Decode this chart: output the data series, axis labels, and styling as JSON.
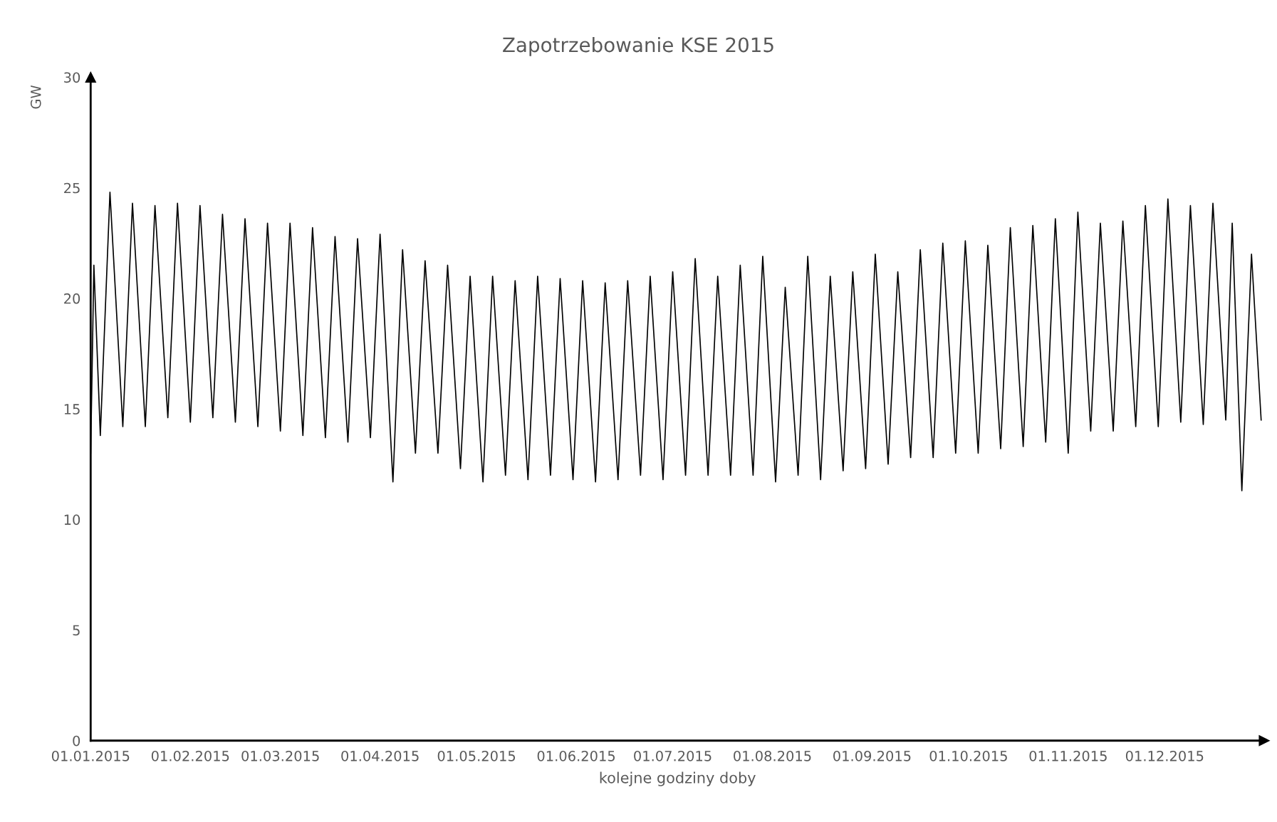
{
  "chart_data": {
    "type": "line",
    "title": "Zapotrzebowanie KSE 2015",
    "xlabel": "kolejne godziny doby",
    "ylabel": "GW",
    "x": [
      "2015-01-01",
      "2015-01-02",
      "2015-01-04",
      "2015-01-07",
      "2015-01-11",
      "2015-01-14",
      "2015-01-18",
      "2015-01-21",
      "2015-01-25",
      "2015-01-28",
      "2015-02-01",
      "2015-02-04",
      "2015-02-08",
      "2015-02-11",
      "2015-02-15",
      "2015-02-18",
      "2015-02-22",
      "2015-02-25",
      "2015-03-01",
      "2015-03-04",
      "2015-03-08",
      "2015-03-11",
      "2015-03-15",
      "2015-03-18",
      "2015-03-22",
      "2015-03-25",
      "2015-03-29",
      "2015-04-01",
      "2015-04-05",
      "2015-04-08",
      "2015-04-12",
      "2015-04-15",
      "2015-04-19",
      "2015-04-22",
      "2015-04-26",
      "2015-04-29",
      "2015-05-03",
      "2015-05-06",
      "2015-05-10",
      "2015-05-13",
      "2015-05-17",
      "2015-05-20",
      "2015-05-24",
      "2015-05-27",
      "2015-05-31",
      "2015-06-03",
      "2015-06-07",
      "2015-06-10",
      "2015-06-14",
      "2015-06-17",
      "2015-06-21",
      "2015-06-24",
      "2015-06-28",
      "2015-07-01",
      "2015-07-05",
      "2015-07-08",
      "2015-07-12",
      "2015-07-15",
      "2015-07-19",
      "2015-07-22",
      "2015-07-26",
      "2015-07-29",
      "2015-08-02",
      "2015-08-05",
      "2015-08-09",
      "2015-08-12",
      "2015-08-16",
      "2015-08-19",
      "2015-08-23",
      "2015-08-26",
      "2015-08-30",
      "2015-09-02",
      "2015-09-06",
      "2015-09-09",
      "2015-09-13",
      "2015-09-16",
      "2015-09-20",
      "2015-09-23",
      "2015-09-27",
      "2015-09-30",
      "2015-10-04",
      "2015-10-07",
      "2015-10-11",
      "2015-10-14",
      "2015-10-18",
      "2015-10-21",
      "2015-10-25",
      "2015-10-28",
      "2015-11-01",
      "2015-11-04",
      "2015-11-08",
      "2015-11-11",
      "2015-11-15",
      "2015-11-18",
      "2015-11-22",
      "2015-11-25",
      "2015-11-29",
      "2015-12-02",
      "2015-12-06",
      "2015-12-09",
      "2015-12-13",
      "2015-12-16",
      "2015-12-20",
      "2015-12-22",
      "2015-12-25",
      "2015-12-28",
      "2015-12-31"
    ],
    "series": [
      {
        "color": "#000000",
        "values": [
          13.0,
          21.5,
          13.8,
          24.8,
          14.2,
          24.3,
          14.2,
          24.2,
          14.6,
          24.3,
          14.4,
          24.2,
          14.6,
          23.8,
          14.4,
          23.6,
          14.2,
          23.4,
          14.0,
          23.4,
          13.8,
          23.2,
          13.7,
          22.8,
          13.5,
          22.7,
          13.7,
          22.9,
          11.7,
          22.2,
          13.0,
          21.7,
          13.0,
          21.5,
          12.3,
          21.0,
          11.7,
          21.0,
          12.0,
          20.8,
          11.8,
          21.0,
          12.0,
          20.9,
          11.8,
          20.8,
          11.7,
          20.7,
          11.8,
          20.8,
          12.0,
          21.0,
          11.8,
          21.2,
          12.0,
          21.8,
          12.0,
          21.0,
          12.0,
          21.5,
          12.0,
          21.9,
          11.7,
          20.5,
          12.0,
          21.9,
          11.8,
          21.0,
          12.2,
          21.2,
          12.3,
          22.0,
          12.5,
          21.2,
          12.8,
          22.2,
          12.8,
          22.5,
          13.0,
          22.6,
          13.0,
          22.4,
          13.2,
          23.2,
          13.3,
          23.3,
          13.5,
          23.6,
          13.0,
          23.9,
          14.0,
          23.4,
          14.0,
          23.5,
          14.2,
          24.2,
          14.2,
          24.5,
          14.4,
          24.2,
          14.3,
          24.3,
          14.5,
          23.4,
          11.3,
          22.0,
          14.5
        ]
      }
    ],
    "xlim": [
      "2015-01-01",
      "2015-12-31T23:00"
    ],
    "xticks": [
      {
        "value": "2015-01-01",
        "label": "01.01.2015"
      },
      {
        "value": "2015-02-01",
        "label": "01.02.2015"
      },
      {
        "value": "2015-03-01",
        "label": "01.03.2015"
      },
      {
        "value": "2015-04-01",
        "label": "01.04.2015"
      },
      {
        "value": "2015-05-01",
        "label": "01.05.2015"
      },
      {
        "value": "2015-06-01",
        "label": "01.06.2015"
      },
      {
        "value": "2015-07-01",
        "label": "01.07.2015"
      },
      {
        "value": "2015-08-01",
        "label": "01.08.2015"
      },
      {
        "value": "2015-09-01",
        "label": "01.09.2015"
      },
      {
        "value": "2015-10-01",
        "label": "01.10.2015"
      },
      {
        "value": "2015-11-01",
        "label": "01.11.2015"
      },
      {
        "value": "2015-12-01",
        "label": "01.12.2015"
      }
    ],
    "ylim": [
      0,
      30
    ],
    "yticks": [
      0,
      5,
      10,
      15,
      20,
      25,
      30
    ],
    "grid": false,
    "marker": "none",
    "line_style": "solid"
  }
}
